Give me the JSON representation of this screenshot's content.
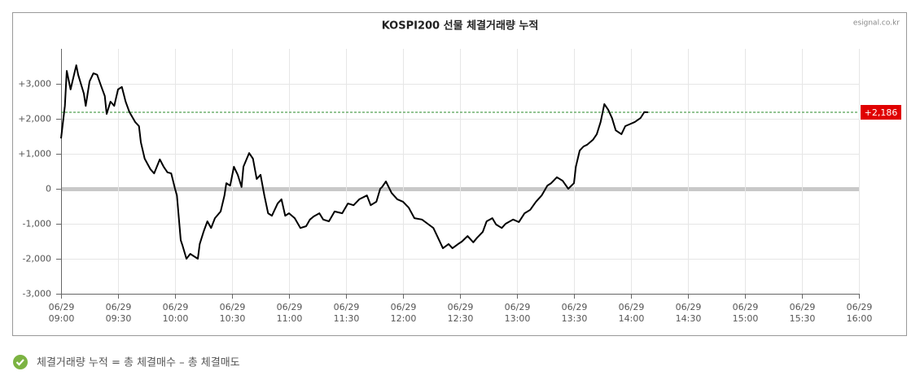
{
  "chart_data": {
    "type": "line",
    "title": "KOSPI200 선물 체결거래량 누적",
    "source": "esignal.co.kr",
    "footnote": "체결거래량 누적 = 총 체결매수 – 총 체결매도",
    "color": "#000000",
    "grid": true,
    "x": [
      "09:00",
      "09:02",
      "09:03",
      "09:05",
      "09:06",
      "09:08",
      "09:09",
      "09:12",
      "09:13",
      "09:15",
      "09:17",
      "09:19",
      "09:21",
      "09:23",
      "09:24",
      "09:26",
      "09:28",
      "09:30",
      "09:32",
      "09:34",
      "09:36",
      "09:39",
      "09:41",
      "09:42",
      "09:44",
      "09:47",
      "09:49",
      "09:52",
      "09:54",
      "09:56",
      "09:58",
      "10:00",
      "10:01",
      "10:03",
      "10:04",
      "10:06",
      "10:08",
      "10:10",
      "10:12",
      "10:13",
      "10:15",
      "10:17",
      "10:19",
      "10:21",
      "10:24",
      "10:26",
      "10:27",
      "10:29",
      "10:31",
      "10:33",
      "10:35",
      "10:36",
      "10:39",
      "10:41",
      "10:43",
      "10:45",
      "10:47",
      "10:49",
      "10:51",
      "10:54",
      "10:56",
      "10:58",
      "11:00",
      "11:03",
      "11:06",
      "11:09",
      "11:11",
      "11:13",
      "11:16",
      "11:18",
      "11:21",
      "11:24",
      "11:28",
      "11:31",
      "11:34",
      "11:37",
      "11:41",
      "11:43",
      "11:46",
      "11:48",
      "11:49",
      "11:51",
      "11:54",
      "11:57",
      "12:00",
      "12:03",
      "12:06",
      "12:10",
      "12:13",
      "12:16",
      "12:18",
      "12:21",
      "12:24",
      "12:26",
      "12:29",
      "12:31",
      "12:34",
      "12:37",
      "12:39",
      "12:42",
      "12:44",
      "12:47",
      "12:49",
      "12:52",
      "12:54",
      "12:58",
      "13:01",
      "13:04",
      "13:07",
      "13:10",
      "13:13",
      "13:16",
      "13:18",
      "13:21",
      "13:24",
      "13:27",
      "13:30",
      "13:31",
      "13:33",
      "13:35",
      "13:37",
      "13:40",
      "13:42",
      "13:44",
      "13:46",
      "13:48",
      "13:50",
      "13:52",
      "13:55",
      "13:57",
      "14:00",
      "14:02",
      "14:05",
      "14:07",
      "14:09"
    ],
    "values": [
      1440,
      2370,
      3370,
      2840,
      3070,
      3530,
      3260,
      2720,
      2370,
      3070,
      3300,
      3260,
      2950,
      2650,
      2140,
      2490,
      2370,
      2840,
      2910,
      2490,
      2190,
      1910,
      1790,
      1330,
      860,
      560,
      440,
      840,
      630,
      470,
      440,
      0,
      -190,
      -1470,
      -1630,
      -2000,
      -1860,
      -1930,
      -2000,
      -1580,
      -1230,
      -930,
      -1120,
      -840,
      -650,
      -190,
      160,
      90,
      630,
      400,
      50,
      630,
      1020,
      860,
      280,
      400,
      -190,
      -700,
      -770,
      -420,
      -300,
      -770,
      -700,
      -840,
      -1120,
      -1070,
      -880,
      -790,
      -700,
      -880,
      -930,
      -650,
      -700,
      -420,
      -470,
      -300,
      -190,
      -470,
      -370,
      0,
      50,
      210,
      -120,
      -300,
      -370,
      -540,
      -840,
      -880,
      -1000,
      -1120,
      -1350,
      -1700,
      -1580,
      -1700,
      -1580,
      -1510,
      -1350,
      -1530,
      -1400,
      -1230,
      -930,
      -840,
      -1020,
      -1120,
      -1000,
      -880,
      -950,
      -700,
      -600,
      -370,
      -190,
      90,
      160,
      330,
      230,
      0,
      160,
      630,
      1090,
      1210,
      1260,
      1400,
      1560,
      1910,
      2420,
      2260,
      2020,
      1670,
      1560,
      1790,
      1860,
      1910,
      2020,
      2190,
      2186
    ],
    "last": {
      "value": 2186,
      "label": "+2,186"
    },
    "xlim": [
      "09:00",
      "16:00"
    ],
    "xticks": [
      {
        "value": "09:00",
        "label": [
          "06/29",
          "09:00"
        ]
      },
      {
        "value": "09:30",
        "label": [
          "06/29",
          "09:30"
        ]
      },
      {
        "value": "10:00",
        "label": [
          "06/29",
          "10:00"
        ]
      },
      {
        "value": "10:30",
        "label": [
          "06/29",
          "10:30"
        ]
      },
      {
        "value": "11:00",
        "label": [
          "06/29",
          "11:00"
        ]
      },
      {
        "value": "11:30",
        "label": [
          "06/29",
          "11:30"
        ]
      },
      {
        "value": "12:00",
        "label": [
          "06/29",
          "12:00"
        ]
      },
      {
        "value": "12:30",
        "label": [
          "06/29",
          "12:30"
        ]
      },
      {
        "value": "13:00",
        "label": [
          "06/29",
          "13:00"
        ]
      },
      {
        "value": "13:30",
        "label": [
          "06/29",
          "13:30"
        ]
      },
      {
        "value": "14:00",
        "label": [
          "06/29",
          "14:00"
        ]
      },
      {
        "value": "14:30",
        "label": [
          "06/29",
          "14:30"
        ]
      },
      {
        "value": "15:00",
        "label": [
          "06/29",
          "15:00"
        ]
      },
      {
        "value": "15:30",
        "label": [
          "06/29",
          "15:30"
        ]
      },
      {
        "value": "16:00",
        "label": [
          "06/29",
          "16:00"
        ]
      }
    ],
    "ylim": [
      -3000,
      4000
    ],
    "yticks": [
      {
        "value": -3000,
        "label": "-3,000"
      },
      {
        "value": -2000,
        "label": "-2,000"
      },
      {
        "value": -1000,
        "label": "-1,000"
      },
      0,
      {
        "value": 1000,
        "label": "+1,000"
      },
      {
        "value": 2000,
        "label": "+2,000"
      },
      {
        "value": 3000,
        "label": "+3,000"
      }
    ]
  }
}
